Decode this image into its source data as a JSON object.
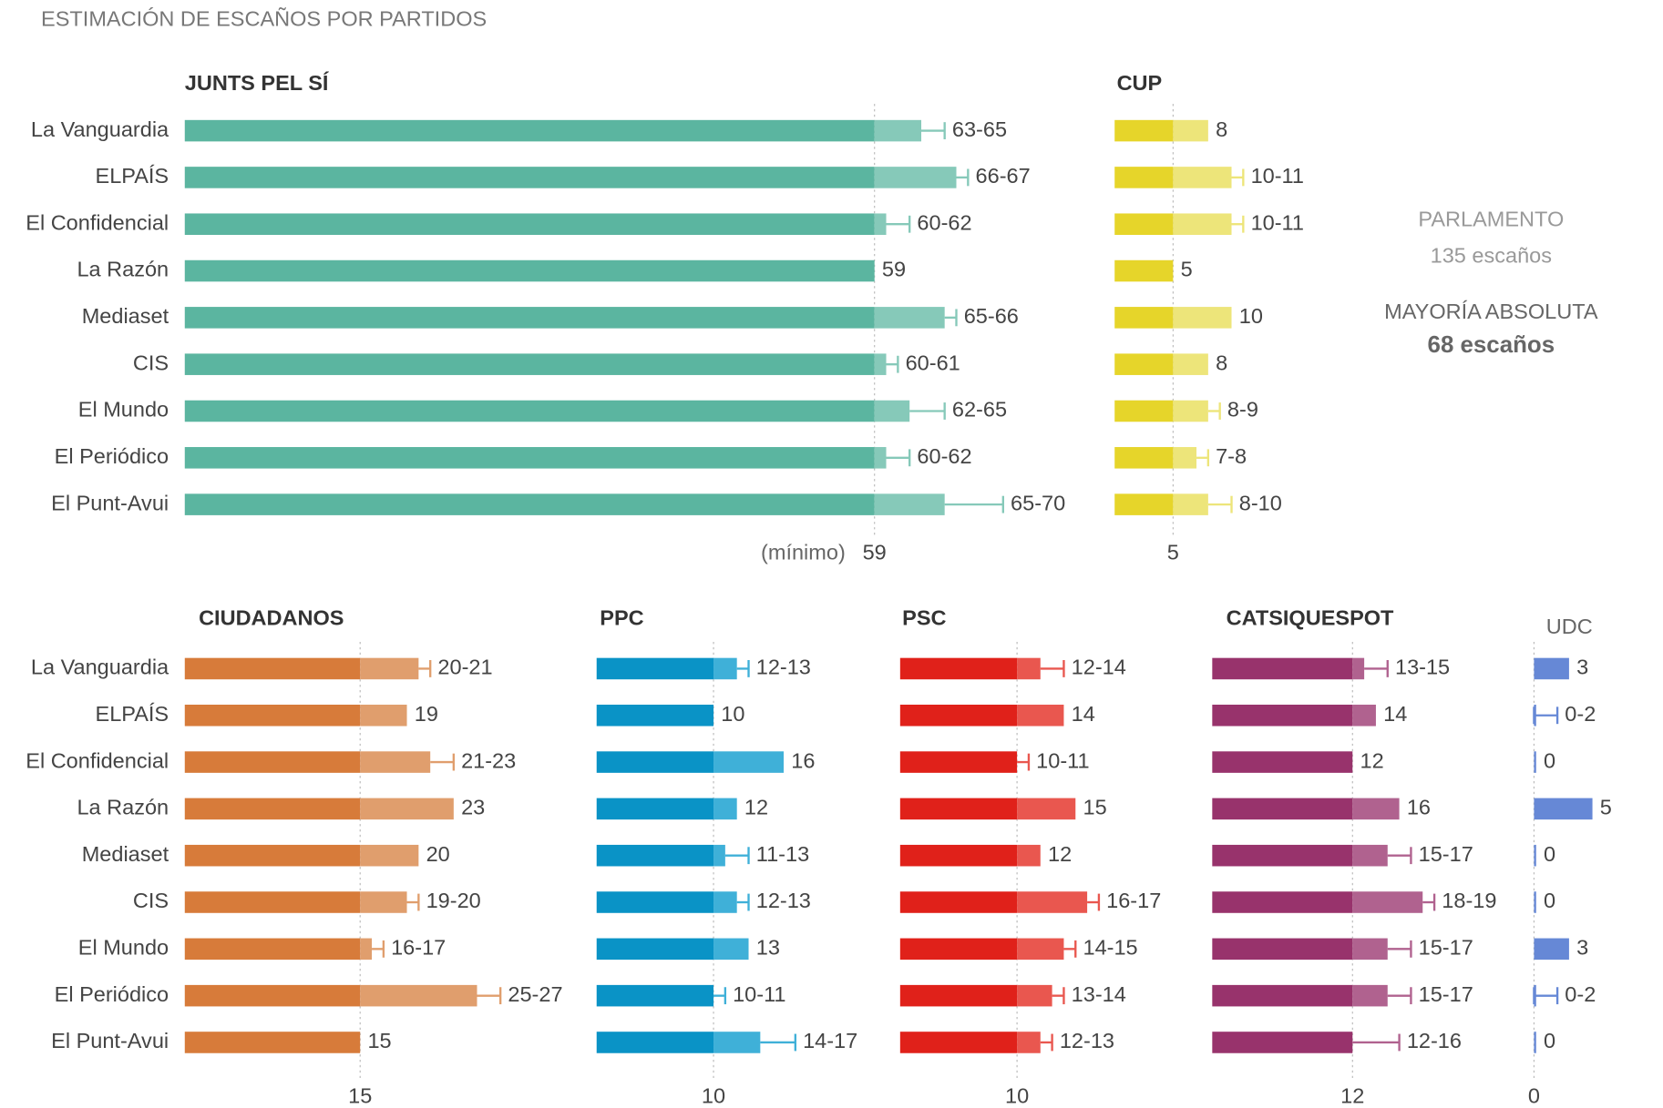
{
  "chart_data": {
    "type": "bar",
    "title": "ESTIMACIÓN DE ESCAÑOS POR PARTIDOS",
    "categories": [
      "La Vanguardia",
      "ELPAÍS",
      "El Confidencial",
      "La Razón",
      "Mediaset",
      "CIS",
      "El Mundo",
      "El Periódico",
      "El Punt-Avui"
    ],
    "annotations": [
      "PARLAMENTO",
      "135 escaños",
      "MAYORÍA ABSOLUTA",
      "68 escaños"
    ],
    "min_label": "(mínimo)",
    "panels": [
      {
        "name": "JUNTS PEL SÍ",
        "color": "#5bb5a0",
        "light_color": "#86c9b9",
        "xticks": [
          59
        ],
        "low": [
          63,
          66,
          60,
          59,
          65,
          60,
          62,
          60,
          65
        ],
        "high": [
          65,
          67,
          62,
          59,
          66,
          61,
          65,
          62,
          70
        ],
        "value_labels": [
          "63-65",
          "66-67",
          "60-62",
          "59",
          "65-66",
          "60-61",
          "62-65",
          "60-62",
          "65-70"
        ]
      },
      {
        "name": "CUP",
        "color": "#e6d52a",
        "light_color": "#ede57a",
        "xticks": [
          5
        ],
        "low": [
          8,
          10,
          10,
          5,
          10,
          8,
          8,
          7,
          8
        ],
        "high": [
          8,
          11,
          11,
          5,
          10,
          8,
          9,
          8,
          10
        ],
        "value_labels": [
          "8",
          "10-11",
          "10-11",
          "5",
          "10",
          "8",
          "8-9",
          "7-8",
          "8-10"
        ]
      },
      {
        "name": "CIUDADANOS",
        "color": "#d77b3a",
        "light_color": "#e09e6d",
        "xticks": [
          15
        ],
        "low": [
          20,
          19,
          21,
          23,
          20,
          19,
          16,
          25,
          15
        ],
        "high": [
          21,
          19,
          23,
          23,
          20,
          20,
          17,
          27,
          15
        ],
        "value_labels": [
          "20-21",
          "19",
          "21-23",
          "23",
          "20",
          "19-20",
          "16-17",
          "25-27",
          "15"
        ]
      },
      {
        "name": "PPC",
        "color": "#0a93c6",
        "light_color": "#3fb0d8",
        "xticks": [
          10
        ],
        "low": [
          12,
          10,
          16,
          12,
          11,
          12,
          13,
          10,
          14
        ],
        "high": [
          13,
          10,
          16,
          12,
          13,
          13,
          13,
          11,
          17
        ],
        "value_labels": [
          "12-13",
          "10",
          "16",
          "12",
          "11-13",
          "12-13",
          "13",
          "10-11",
          "14-17"
        ]
      },
      {
        "name": "PSC",
        "color": "#e0211a",
        "light_color": "#e9574f",
        "xticks": [
          10
        ],
        "low": [
          12,
          14,
          10,
          15,
          12,
          16,
          14,
          13,
          12
        ],
        "high": [
          14,
          14,
          11,
          15,
          12,
          17,
          15,
          14,
          13
        ],
        "value_labels": [
          "12-14",
          "14",
          "10-11",
          "15",
          "12",
          "16-17",
          "14-15",
          "13-14",
          "12-13"
        ]
      },
      {
        "name": "CATSIQUESPOT",
        "color": "#98336c",
        "light_color": "#b0628f",
        "xticks": [
          12
        ],
        "low": [
          13,
          14,
          12,
          16,
          15,
          18,
          15,
          15,
          12
        ],
        "high": [
          15,
          14,
          12,
          16,
          17,
          19,
          17,
          17,
          16
        ],
        "value_labels": [
          "13-15",
          "14",
          "12",
          "16",
          "15-17",
          "18-19",
          "15-17",
          "15-17",
          "12-16"
        ]
      },
      {
        "name": "UDC",
        "color": "#6688d6",
        "light_color": "#6688d6",
        "xticks": [
          0
        ],
        "low": [
          3,
          0,
          0,
          5,
          0,
          0,
          3,
          0,
          0
        ],
        "high": [
          3,
          2,
          0,
          5,
          0,
          0,
          3,
          2,
          0
        ],
        "value_labels": [
          "3",
          "0-2",
          "0",
          "5",
          "0",
          "0",
          "3",
          "0-2",
          "0"
        ]
      }
    ]
  }
}
